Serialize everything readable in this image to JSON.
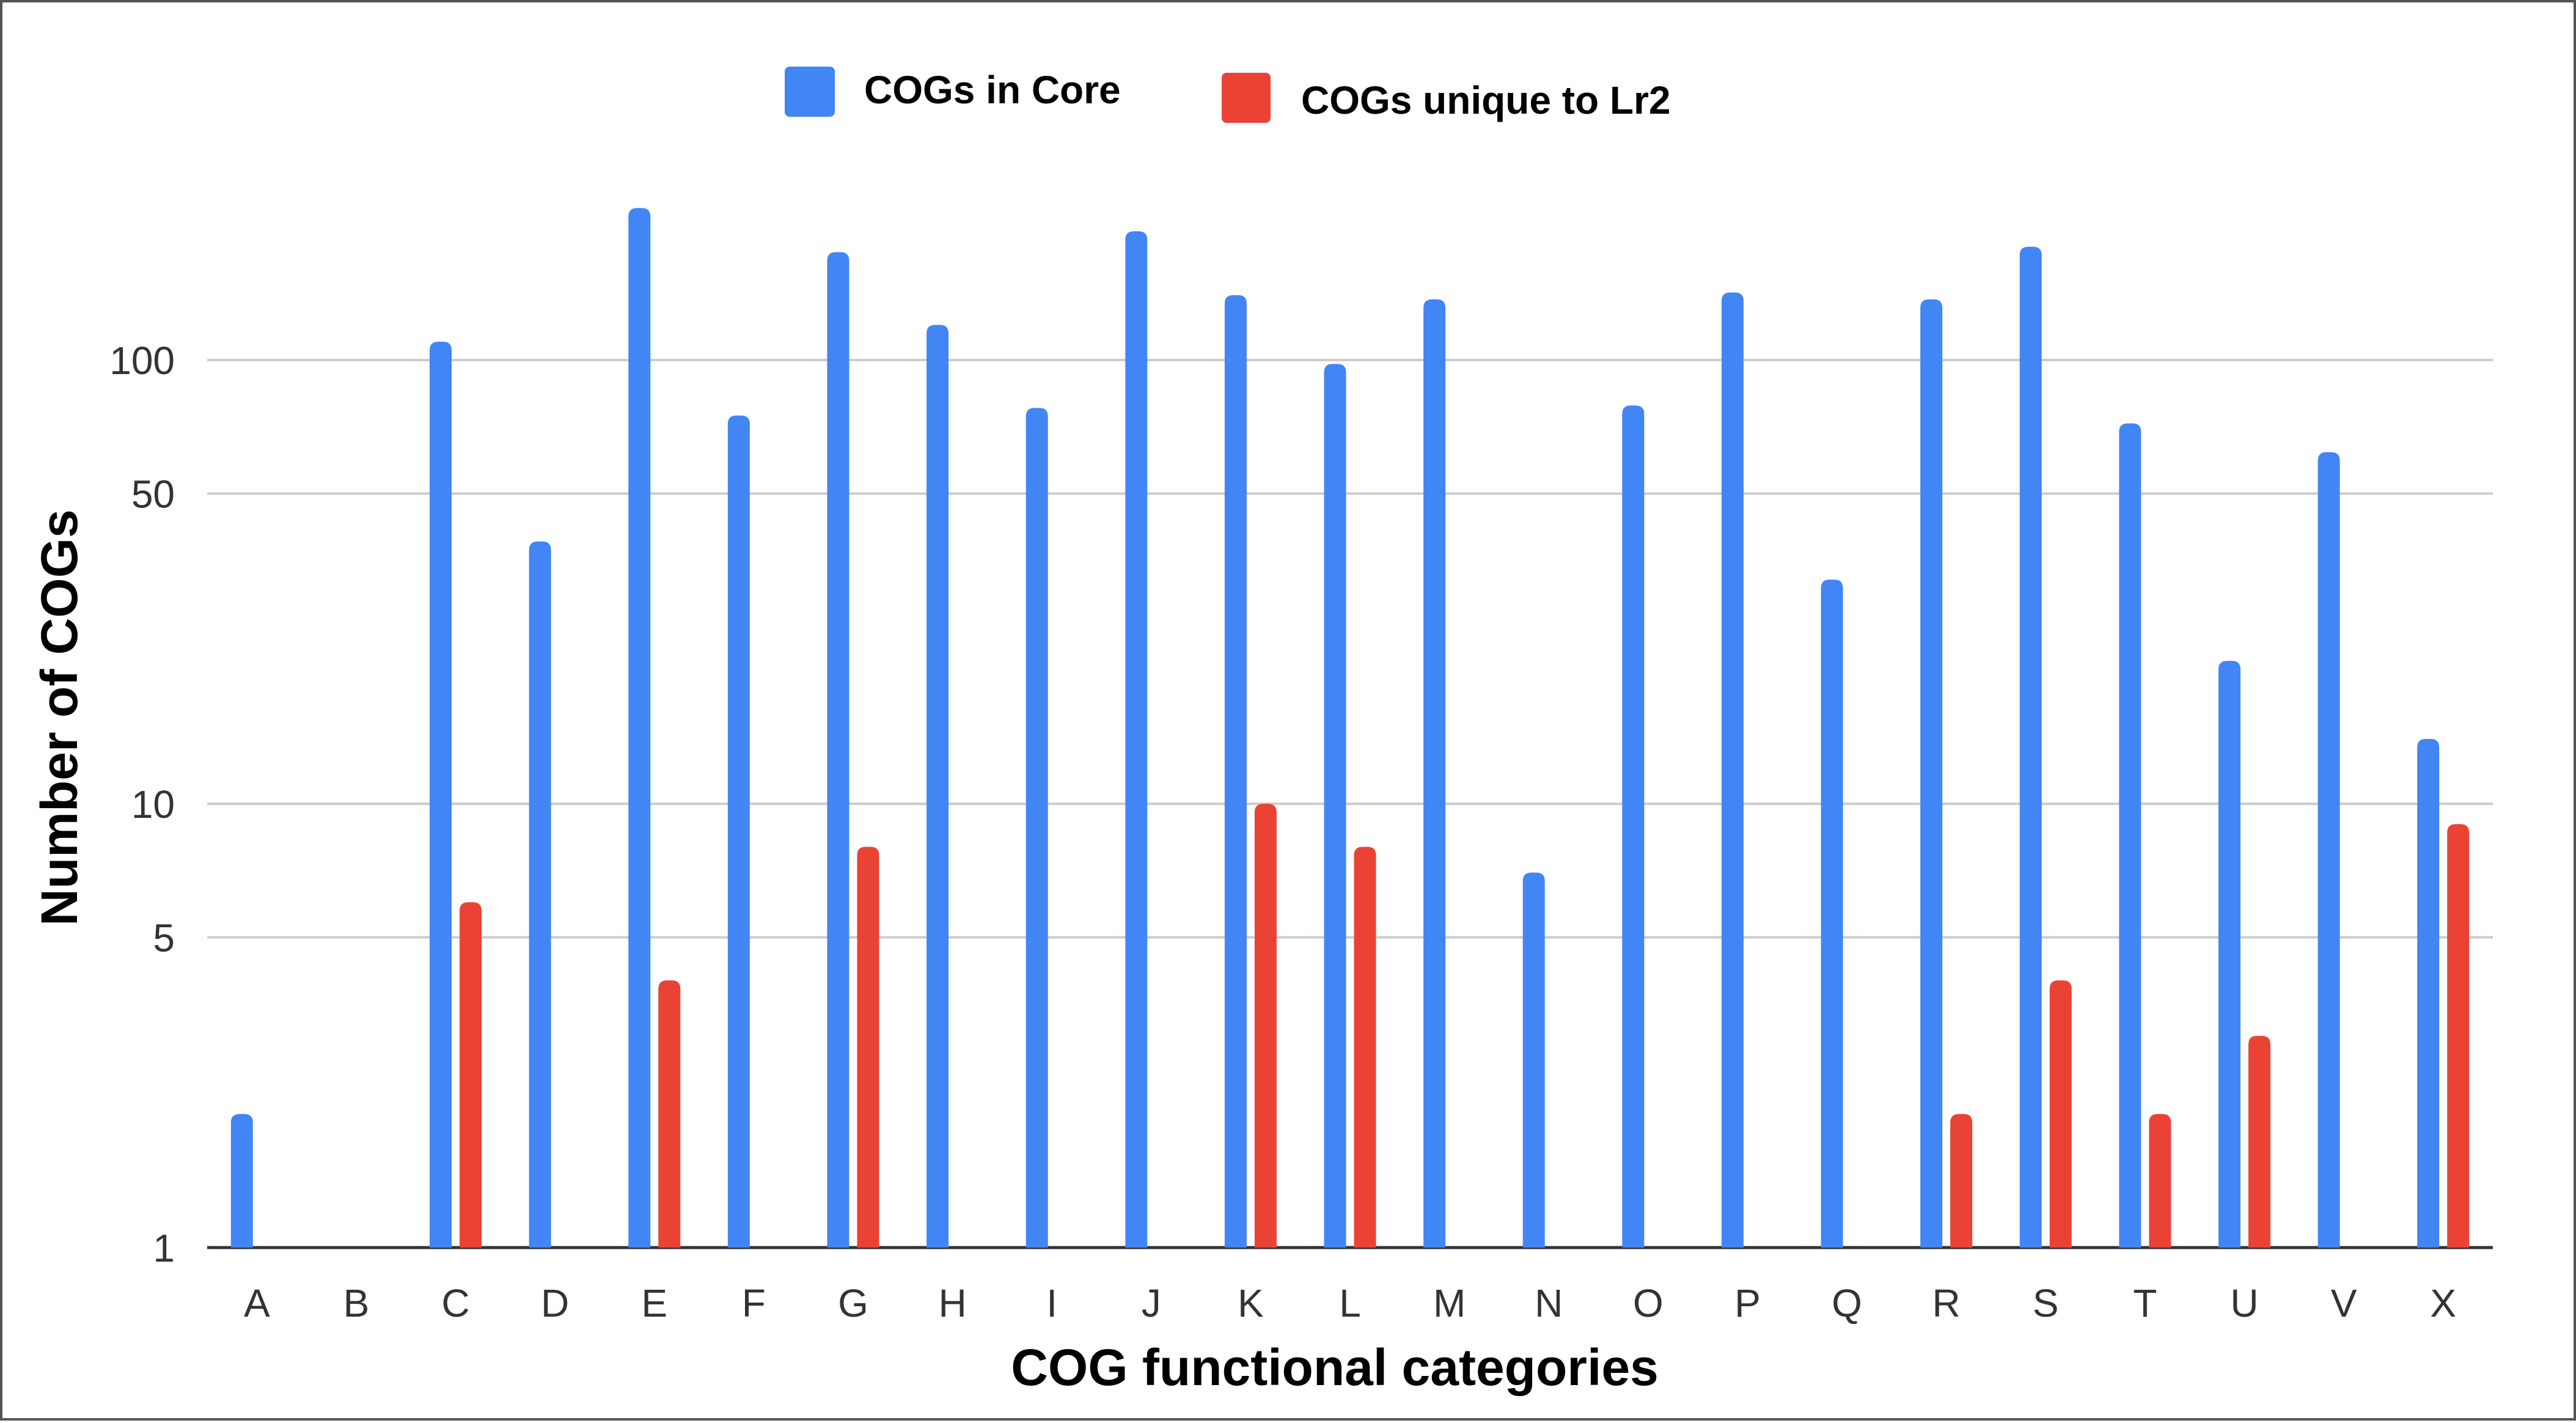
{
  "chart_data": {
    "type": "bar",
    "title": "",
    "xlabel": "COG functional categories",
    "ylabel": "Number of COGs",
    "yscale": "log",
    "ylim": [
      1,
      400
    ],
    "yticks": [
      1,
      5,
      10,
      50,
      100
    ],
    "ytick_labels": [
      "1",
      "5",
      "10",
      "50",
      "100"
    ],
    "grid": true,
    "legend_position": "top-center",
    "categories": [
      "A",
      "B",
      "C",
      "D",
      "E",
      "F",
      "G",
      "H",
      "I",
      "J",
      "K",
      "L",
      "M",
      "N",
      "O",
      "P",
      "Q",
      "R",
      "S",
      "T",
      "U",
      "V",
      "X"
    ],
    "series": [
      {
        "name": "COGs in Core",
        "color": "#4285F4",
        "values": [
          2,
          0,
          110,
          39,
          220,
          75,
          175,
          120,
          78,
          195,
          140,
          98,
          137,
          7,
          79,
          142,
          32,
          137,
          180,
          72,
          21,
          62,
          14
        ]
      },
      {
        "name": "COGs unique to Lr2",
        "color": "#EA4335",
        "values": [
          0,
          0,
          6,
          0,
          4,
          0,
          8,
          0,
          0,
          0,
          10,
          8,
          0,
          0,
          0,
          0,
          0,
          2,
          4,
          2,
          3,
          0,
          9
        ]
      }
    ]
  },
  "colors": {
    "gridline": "#cccccc",
    "baseline": "#333333"
  }
}
